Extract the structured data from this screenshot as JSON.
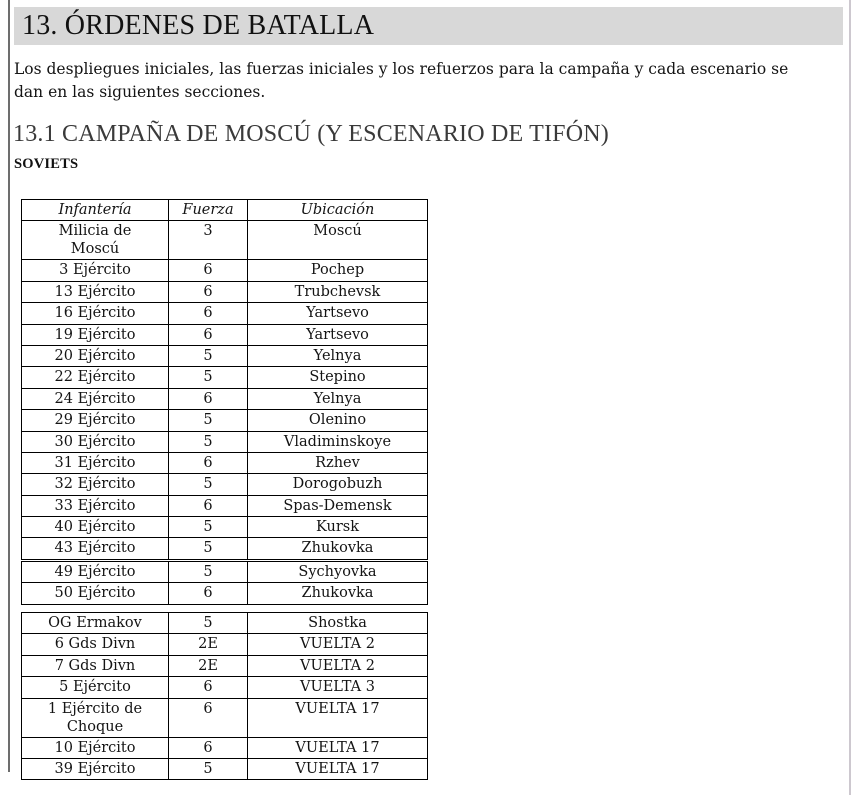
{
  "colors": {
    "banner_bg": "#d8d8d8",
    "page_edge_dark": "#6d6d6d",
    "page_edge_light": "#cdc8cf",
    "table_border": "#000000",
    "text": "#141414",
    "heading_secondary": "#3a3a3a"
  },
  "page": {
    "title": "13. ÓRDENES DE BATALLA",
    "intro": "Los despliegues iniciales, las fuerzas iniciales y los refuerzos para la campaña y cada escenario se dan en las siguientes secciones.",
    "subsection_title": "13.1 CAMPAÑA DE MOSCÚ (Y ESCENARIO DE TIFÓN)",
    "faction_heading": "SOVIETS"
  },
  "table": {
    "headers": [
      "Infantería",
      "Fuerza",
      "Ubicación"
    ],
    "blocks": [
      {
        "has_header": true,
        "rows": [
          [
            "Milicia de\nMoscú",
            "3",
            "Moscú"
          ],
          [
            "3 Ejército",
            "6",
            "Pochep"
          ],
          [
            "13 Ejército",
            "6",
            "Trubchevsk"
          ],
          [
            "16 Ejército",
            "6",
            "Yartsevo"
          ],
          [
            "19 Ejército",
            "6",
            "Yartsevo"
          ],
          [
            "20 Ejército",
            "5",
            "Yelnya"
          ],
          [
            "22 Ejército",
            "5",
            "Stepino"
          ],
          [
            "24 Ejército",
            "6",
            "Yelnya"
          ],
          [
            "29 Ejército",
            "5",
            "Olenino"
          ],
          [
            "30 Ejército",
            "5",
            "Vladiminskoye"
          ],
          [
            "31 Ejército",
            "6",
            "Rzhev"
          ],
          [
            "32 Ejército",
            "5",
            "Dorogobuzh"
          ],
          [
            "33 Ejército",
            "6",
            "Spas-Demensk"
          ],
          [
            "40 Ejército",
            "5",
            "Kursk"
          ],
          [
            "43 Ejército",
            "5",
            "Zhukovka"
          ]
        ]
      },
      {
        "has_header": false,
        "rows": [
          [
            "49 Ejército",
            "5",
            "Sychyovka"
          ],
          [
            "50 Ejército",
            "6",
            "Zhukovka"
          ]
        ]
      },
      {
        "has_header": false,
        "rows": [
          [
            "OG Ermakov",
            "5",
            "Shostka"
          ],
          [
            "6 Gds Divn",
            "2E",
            "VUELTA 2"
          ],
          [
            "7 Gds Divn",
            "2E",
            "VUELTA 2"
          ],
          [
            "5 Ejército",
            "6",
            "VUELTA 3"
          ],
          [
            "1 Ejército de\nChoque",
            "6",
            "VUELTA 17"
          ],
          [
            "10 Ejército",
            "6",
            "VUELTA 17"
          ],
          [
            "39 Ejército",
            "5",
            "VUELTA 17"
          ]
        ]
      }
    ]
  }
}
